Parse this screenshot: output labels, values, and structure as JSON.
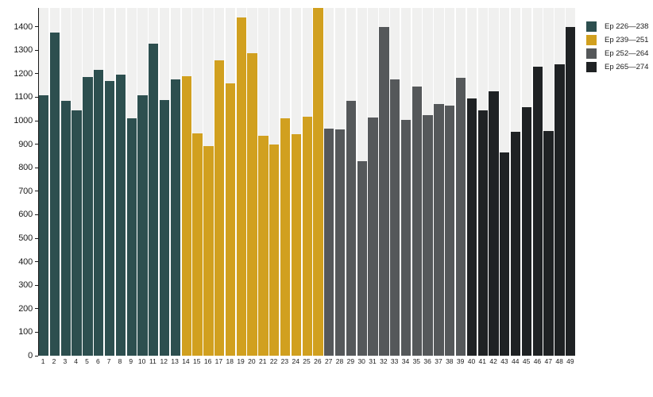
{
  "chart_data": {
    "type": "bar",
    "title": "",
    "xlabel": "",
    "ylabel": "",
    "ylim": [
      0,
      1480
    ],
    "yticks": [
      0,
      100,
      200,
      300,
      400,
      500,
      600,
      700,
      800,
      900,
      1000,
      1100,
      1200,
      1300,
      1400
    ],
    "grid": false,
    "legend_position": "right",
    "bar_track_color": "#f0f0ef",
    "axis_color": "#1a1a1a",
    "categories": [
      1,
      2,
      3,
      4,
      5,
      6,
      7,
      8,
      9,
      10,
      11,
      12,
      13,
      14,
      15,
      16,
      17,
      18,
      19,
      20,
      21,
      22,
      23,
      24,
      25,
      26,
      27,
      28,
      29,
      30,
      31,
      32,
      33,
      34,
      35,
      36,
      37,
      38,
      39,
      40,
      41,
      42,
      43,
      44,
      45,
      46,
      47,
      48,
      49
    ],
    "values": [
      1110,
      1375,
      1085,
      1045,
      1185,
      1215,
      1170,
      1195,
      1012,
      1110,
      1327,
      1087,
      1177,
      1191,
      946,
      893,
      1256,
      1158,
      1438,
      1287,
      936,
      898,
      1009,
      944,
      1018,
      1480,
      965,
      962,
      1084,
      828,
      1015,
      1400,
      1175,
      1005,
      1147,
      1025,
      1070,
      1065,
      1183,
      1096,
      1045,
      1124,
      865,
      952,
      1059,
      1229,
      955,
      1240,
      1400
    ],
    "groups": [
      {
        "name": "Ep 226—238",
        "color": "#2d4f4f",
        "from": 1,
        "to": 13
      },
      {
        "name": "Ep 239—251",
        "color": "#d1a01f",
        "from": 14,
        "to": 26
      },
      {
        "name": "Ep 252—264",
        "color": "#55585a",
        "from": 27,
        "to": 39
      },
      {
        "name": "Ep 265—274",
        "color": "#1f2224",
        "from": 40,
        "to": 49
      }
    ]
  }
}
